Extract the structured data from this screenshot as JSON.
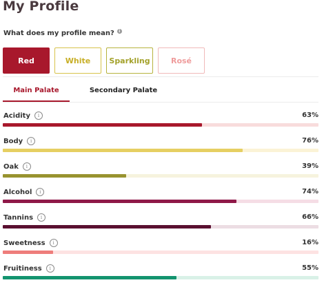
{
  "page_title": "My Profile",
  "question": "What does my profile mean?",
  "wine_types": [
    {
      "label": "Red",
      "selected": true
    },
    {
      "label": "White",
      "selected": false
    },
    {
      "label": "Sparkling",
      "selected": false
    },
    {
      "label": "Rosé",
      "selected": false
    }
  ],
  "tabs": [
    {
      "label": "Main Palate",
      "active": true
    },
    {
      "label": "Secondary Palate",
      "active": false
    }
  ],
  "attributes": [
    {
      "label": "Acidity",
      "value_text": "63%",
      "value": 63,
      "color": "#a8182c",
      "track_color": "#f8dcdc"
    },
    {
      "label": "Body",
      "value_text": "76%",
      "value": 76,
      "color": "#e6cf62",
      "track_color": "#fbf3d6"
    },
    {
      "label": "Oak",
      "value_text": "39%",
      "value": 39,
      "color": "#98932f",
      "track_color": "#f6f3de"
    },
    {
      "label": "Alcohol",
      "value_text": "74%",
      "value": 74,
      "color": "#8f1848",
      "track_color": "#f5dde5"
    },
    {
      "label": "Tannins",
      "value_text": "66%",
      "value": 66,
      "color": "#5a1030",
      "track_color": "#ecdde3"
    },
    {
      "label": "Sweetness",
      "value_text": "16%",
      "value": 16,
      "color": "#ee7d7b",
      "track_color": "#fde2e2"
    },
    {
      "label": "Fruitiness",
      "value_text": "55%",
      "value": 55,
      "color": "#13946f",
      "track_color": "#d9f1e7"
    }
  ]
}
